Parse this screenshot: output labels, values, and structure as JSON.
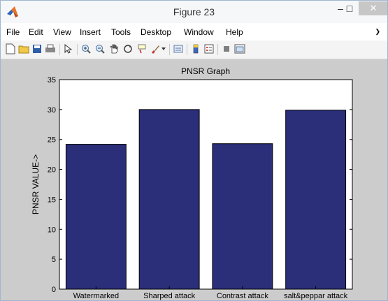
{
  "window": {
    "title": "Figure 23"
  },
  "menu": [
    "File",
    "Edit",
    "View",
    "Insert",
    "Tools",
    "Desktop",
    "Window",
    "Help"
  ],
  "toolbar": {
    "icons": [
      "new-figure-icon",
      "open-file-icon",
      "save-icon",
      "print-icon",
      "pointer-icon",
      "zoom-in-icon",
      "zoom-out-icon",
      "pan-icon",
      "rotate-3d-icon",
      "data-cursor-icon",
      "brush-icon",
      "brush-dropdown-icon",
      "link-plot-icon",
      "colorbar-icon",
      "legend-icon",
      "hide-plot-tools-icon",
      "show-plot-tools-icon"
    ]
  },
  "chart_data": {
    "type": "bar",
    "title": "PNSR Graph",
    "xlabel": "",
    "ylabel": "PNSR VALUE->",
    "categories": [
      "Watermarked",
      "Sharped attack",
      "Contrast attack",
      "salt&peppar attack"
    ],
    "values": [
      24.2,
      30.0,
      24.3,
      29.9
    ],
    "ylim": [
      0,
      35
    ],
    "yticks": [
      0,
      5,
      10,
      15,
      20,
      25,
      30,
      35
    ],
    "bar_color": "#2b2f7a",
    "grid": false
  }
}
